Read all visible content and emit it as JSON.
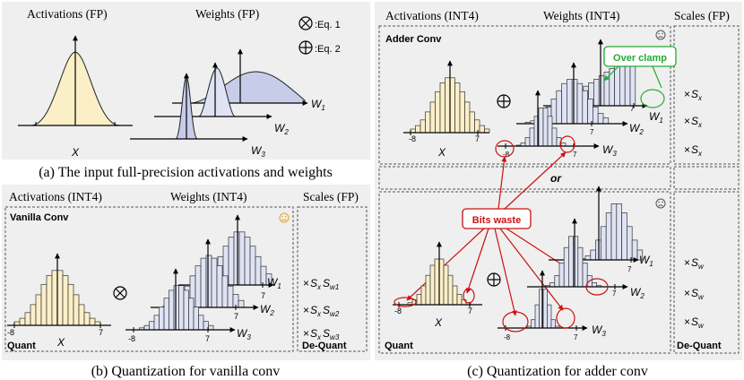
{
  "legend": {
    "otimes_label": ":Eq. 1",
    "oplus_label": ":Eq. 2"
  },
  "panel_a": {
    "header_activations": "Activations (FP)",
    "header_weights": "Weights (FP)",
    "axis_x": "X",
    "axis_w1": "W",
    "axis_w1_sub": "1",
    "axis_w2": "W",
    "axis_w2_sub": "2",
    "axis_w3": "W",
    "axis_w3_sub": "3",
    "caption": "(a) The input full-precision activations and weights"
  },
  "panel_b": {
    "header_activations": "Activations (INT4)",
    "header_weights": "Weights (INT4)",
    "header_scales": "Scales (FP)",
    "title": "Vanilla Conv",
    "quant_label": "Quant",
    "dequant_label": "De-Quant",
    "tick_neg": "-8",
    "tick_pos": "7",
    "axis_x": "X",
    "axis_w1": "W",
    "axis_w1_sub": "1",
    "axis_w2": "W",
    "axis_w2_sub": "2",
    "axis_w3": "W",
    "axis_w3_sub": "3",
    "scales": [
      {
        "times": "×",
        "sx": "S",
        "sx_sub": "x",
        "sw": "S",
        "sw_sub": "w1"
      },
      {
        "times": "×",
        "sx": "S",
        "sx_sub": "x",
        "sw": "S",
        "sw_sub": "w2"
      },
      {
        "times": "×",
        "sx": "S",
        "sx_sub": "x",
        "sw": "S",
        "sw_sub": "w3"
      }
    ],
    "caption": "(b) Quantization for vanilla conv"
  },
  "panel_c": {
    "header_activations": "Activations (INT4)",
    "header_weights": "Weights (INT4)",
    "header_scales": "Scales (FP)",
    "title": "Adder Conv",
    "over_clamp": "Over clamp",
    "bits_waste": "Bits waste",
    "or_label": "or",
    "quant_label": "Quant",
    "dequant_label": "De-Quant",
    "tick_neg": "-8",
    "tick_pos": "7",
    "axis_x": "X",
    "axis_w": "W",
    "sub1": "1",
    "sub2": "2",
    "sub3": "3",
    "scales_top": [
      {
        "times": "×",
        "s": "S",
        "sub": "x"
      },
      {
        "times": "×",
        "s": "S",
        "sub": "x"
      },
      {
        "times": "×",
        "s": "S",
        "sub": "x"
      }
    ],
    "scales_bottom": [
      {
        "times": "×",
        "s": "S",
        "sub": "w"
      },
      {
        "times": "×",
        "s": "S",
        "sub": "w"
      },
      {
        "times": "×",
        "s": "S",
        "sub": "w"
      }
    ],
    "caption": "(c) Quantization for adder conv"
  },
  "colors": {
    "panel_bg": "#efefef",
    "act_fill": "#fbefc8",
    "weight_fill": "#dfe3f4",
    "curve_blue": "#c7cde9",
    "green": "#22aa33",
    "red": "#cc1111",
    "smile": "#e8a317"
  }
}
